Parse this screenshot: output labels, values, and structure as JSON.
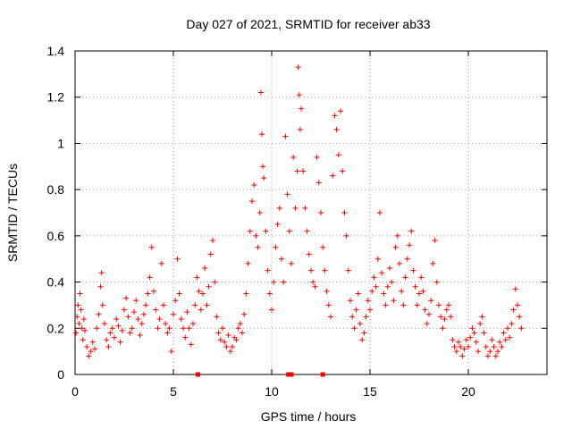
{
  "chart_data": {
    "type": "scatter",
    "title": "Day 027 of 2021, SRMTID for receiver ab33",
    "xlabel": "GPS time / hours",
    "ylabel": "SRMTID / TECUs",
    "xlim": [
      0,
      24
    ],
    "ylim": [
      0,
      1.4
    ],
    "xticks": [
      "0",
      "5",
      "10",
      "15",
      "20"
    ],
    "xtick_values": [
      0,
      5,
      10,
      15,
      20
    ],
    "yticks": [
      "0",
      "0.2",
      "0.4",
      "0.6",
      "0.8",
      "1",
      "1.2",
      "1.4"
    ],
    "ytick_values": [
      0,
      0.2,
      0.4,
      0.6,
      0.8,
      1.0,
      1.2,
      1.4
    ],
    "grid": true,
    "marker": "+",
    "color": "#ff0000",
    "series": [
      {
        "name": "SRMTID",
        "points": [
          [
            0.05,
            0.18
          ],
          [
            0.1,
            0.25
          ],
          [
            0.15,
            0.3
          ],
          [
            0.2,
            0.22
          ],
          [
            0.25,
            0.35
          ],
          [
            0.3,
            0.28
          ],
          [
            0.35,
            0.2
          ],
          [
            0.4,
            0.15
          ],
          [
            0.45,
            0.24
          ],
          [
            0.5,
            0.19
          ],
          [
            0.6,
            0.12
          ],
          [
            0.7,
            0.08
          ],
          [
            0.8,
            0.1
          ],
          [
            0.9,
            0.14
          ],
          [
            1.0,
            0.11
          ],
          [
            1.1,
            0.2
          ],
          [
            1.2,
            0.26
          ],
          [
            1.3,
            0.38
          ],
          [
            1.35,
            0.44
          ],
          [
            1.4,
            0.3
          ],
          [
            1.5,
            0.22
          ],
          [
            1.6,
            0.15
          ],
          [
            1.7,
            0.12
          ],
          [
            1.8,
            0.18
          ],
          [
            1.9,
            0.2
          ],
          [
            2.0,
            0.16
          ],
          [
            2.1,
            0.24
          ],
          [
            2.2,
            0.21
          ],
          [
            2.3,
            0.14
          ],
          [
            2.4,
            0.19
          ],
          [
            2.5,
            0.28
          ],
          [
            2.6,
            0.33
          ],
          [
            2.7,
            0.25
          ],
          [
            2.8,
            0.18
          ],
          [
            2.9,
            0.2
          ],
          [
            3.0,
            0.27
          ],
          [
            3.1,
            0.32
          ],
          [
            3.2,
            0.24
          ],
          [
            3.3,
            0.17
          ],
          [
            3.4,
            0.22
          ],
          [
            3.5,
            0.26
          ],
          [
            3.6,
            0.3
          ],
          [
            3.7,
            0.35
          ],
          [
            3.8,
            0.42
          ],
          [
            3.9,
            0.55
          ],
          [
            4.0,
            0.36
          ],
          [
            4.1,
            0.28
          ],
          [
            4.2,
            0.2
          ],
          [
            4.3,
            0.24
          ],
          [
            4.4,
            0.48
          ],
          [
            4.5,
            0.3
          ],
          [
            4.6,
            0.22
          ],
          [
            4.7,
            0.18
          ],
          [
            4.8,
            0.2
          ],
          [
            4.9,
            0.1
          ],
          [
            5.0,
            0.26
          ],
          [
            5.1,
            0.32
          ],
          [
            5.2,
            0.5
          ],
          [
            5.3,
            0.35
          ],
          [
            5.4,
            0.24
          ],
          [
            5.5,
            0.2
          ],
          [
            5.6,
            0.16
          ],
          [
            5.7,
            0.27
          ],
          [
            5.8,
            0.2
          ],
          [
            5.9,
            0.13
          ],
          [
            6.0,
            0.22
          ],
          [
            6.1,
            0.3
          ],
          [
            6.2,
            0.42
          ],
          [
            6.3,
            0.36
          ],
          [
            6.4,
            0.28
          ],
          [
            6.5,
            0.35
          ],
          [
            6.6,
            0.46
          ],
          [
            6.7,
            0.3
          ],
          [
            6.8,
            0.38
          ],
          [
            6.9,
            0.52
          ],
          [
            7.0,
            0.58
          ],
          [
            7.1,
            0.4
          ],
          [
            7.2,
            0.25
          ],
          [
            7.3,
            0.18
          ],
          [
            7.4,
            0.15
          ],
          [
            7.5,
            0.2
          ],
          [
            7.6,
            0.14
          ],
          [
            7.7,
            0.12
          ],
          [
            7.8,
            0.17
          ],
          [
            7.9,
            0.1
          ],
          [
            8.0,
            0.12
          ],
          [
            8.1,
            0.16
          ],
          [
            8.2,
            0.15
          ],
          [
            8.3,
            0.2
          ],
          [
            8.4,
            0.22
          ],
          [
            8.5,
            0.18
          ],
          [
            8.6,
            0.26
          ],
          [
            8.7,
            0.35
          ],
          [
            8.8,
            0.48
          ],
          [
            8.9,
            0.62
          ],
          [
            9.0,
            0.75
          ],
          [
            9.1,
            0.82
          ],
          [
            9.2,
            0.6
          ],
          [
            9.3,
            0.55
          ],
          [
            9.4,
            0.7
          ],
          [
            9.45,
            1.22
          ],
          [
            9.5,
            1.04
          ],
          [
            9.55,
            0.9
          ],
          [
            9.6,
            0.85
          ],
          [
            9.7,
            0.62
          ],
          [
            9.8,
            0.45
          ],
          [
            9.9,
            0.35
          ],
          [
            10.0,
            0.28
          ],
          [
            10.1,
            0.4
          ],
          [
            10.2,
            0.55
          ],
          [
            10.3,
            0.65
          ],
          [
            10.4,
            0.72
          ],
          [
            10.5,
            0.5
          ],
          [
            10.6,
            0.4
          ],
          [
            10.7,
            1.03
          ],
          [
            10.8,
            0.78
          ],
          [
            10.9,
            0.62
          ],
          [
            11.0,
            0.48
          ],
          [
            11.1,
            0.94
          ],
          [
            11.2,
            0.72
          ],
          [
            11.3,
            0.88
          ],
          [
            11.35,
            1.33
          ],
          [
            11.4,
            1.21
          ],
          [
            11.45,
            1.06
          ],
          [
            11.5,
            1.15
          ],
          [
            11.6,
            0.88
          ],
          [
            11.7,
            0.72
          ],
          [
            11.8,
            0.62
          ],
          [
            11.9,
            0.52
          ],
          [
            12.0,
            0.45
          ],
          [
            12.1,
            0.4
          ],
          [
            12.2,
            0.38
          ],
          [
            12.3,
            0.94
          ],
          [
            12.4,
            0.83
          ],
          [
            12.5,
            0.7
          ],
          [
            12.6,
            0.55
          ],
          [
            12.7,
            0.45
          ],
          [
            12.8,
            0.36
          ],
          [
            12.9,
            0.3
          ],
          [
            13.0,
            0.25
          ],
          [
            13.1,
            0.86
          ],
          [
            13.2,
            1.12
          ],
          [
            13.3,
            1.06
          ],
          [
            13.4,
            0.95
          ],
          [
            13.5,
            1.14
          ],
          [
            13.6,
            0.88
          ],
          [
            13.7,
            0.7
          ],
          [
            13.8,
            0.6
          ],
          [
            13.9,
            0.45
          ],
          [
            14.0,
            0.32
          ],
          [
            14.1,
            0.25
          ],
          [
            14.2,
            0.2
          ],
          [
            14.3,
            0.28
          ],
          [
            14.4,
            0.35
          ],
          [
            14.5,
            0.22
          ],
          [
            14.6,
            0.15
          ],
          [
            14.7,
            0.18
          ],
          [
            14.8,
            0.25
          ],
          [
            14.9,
            0.32
          ],
          [
            15.0,
            0.28
          ],
          [
            15.1,
            0.36
          ],
          [
            15.2,
            0.42
          ],
          [
            15.3,
            0.38
          ],
          [
            15.4,
            0.5
          ],
          [
            15.5,
            0.7
          ],
          [
            15.6,
            0.44
          ],
          [
            15.7,
            0.35
          ],
          [
            15.8,
            0.3
          ],
          [
            15.9,
            0.38
          ],
          [
            16.0,
            0.46
          ],
          [
            16.1,
            0.4
          ],
          [
            16.2,
            0.32
          ],
          [
            16.3,
            0.55
          ],
          [
            16.4,
            0.6
          ],
          [
            16.5,
            0.48
          ],
          [
            16.6,
            0.36
          ],
          [
            16.7,
            0.3
          ],
          [
            16.8,
            0.42
          ],
          [
            16.9,
            0.5
          ],
          [
            17.0,
            0.56
          ],
          [
            17.1,
            0.62
          ],
          [
            17.2,
            0.45
          ],
          [
            17.3,
            0.38
          ],
          [
            17.4,
            0.3
          ],
          [
            17.5,
            0.35
          ],
          [
            17.6,
            0.42
          ],
          [
            17.7,
            0.36
          ],
          [
            17.8,
            0.28
          ],
          [
            17.9,
            0.22
          ],
          [
            18.0,
            0.26
          ],
          [
            18.1,
            0.32
          ],
          [
            18.2,
            0.48
          ],
          [
            18.3,
            0.58
          ],
          [
            18.4,
            0.4
          ],
          [
            18.5,
            0.3
          ],
          [
            18.6,
            0.25
          ],
          [
            18.7,
            0.2
          ],
          [
            18.8,
            0.24
          ],
          [
            18.9,
            0.28
          ],
          [
            19.0,
            0.3
          ],
          [
            19.1,
            0.25
          ],
          [
            19.2,
            0.15
          ],
          [
            19.3,
            0.12
          ],
          [
            19.4,
            0.1
          ],
          [
            19.5,
            0.14
          ],
          [
            19.6,
            0.12
          ],
          [
            19.7,
            0.08
          ],
          [
            19.8,
            0.11
          ],
          [
            19.9,
            0.15
          ],
          [
            20.0,
            0.12
          ],
          [
            20.1,
            0.16
          ],
          [
            20.2,
            0.2
          ],
          [
            20.3,
            0.18
          ],
          [
            20.4,
            0.14
          ],
          [
            20.5,
            0.1
          ],
          [
            20.6,
            0.22
          ],
          [
            20.7,
            0.25
          ],
          [
            20.8,
            0.18
          ],
          [
            20.9,
            0.12
          ],
          [
            21.0,
            0.08
          ],
          [
            21.1,
            0.1
          ],
          [
            21.2,
            0.15
          ],
          [
            21.3,
            0.12
          ],
          [
            21.4,
            0.08
          ],
          [
            21.5,
            0.1
          ],
          [
            21.6,
            0.14
          ],
          [
            21.7,
            0.12
          ],
          [
            21.8,
            0.18
          ],
          [
            21.9,
            0.15
          ],
          [
            22.0,
            0.2
          ],
          [
            22.1,
            0.16
          ],
          [
            22.2,
            0.22
          ],
          [
            22.3,
            0.28
          ],
          [
            22.4,
            0.37
          ],
          [
            22.5,
            0.3
          ],
          [
            22.6,
            0.25
          ],
          [
            22.7,
            0.2
          ]
        ]
      }
    ]
  }
}
